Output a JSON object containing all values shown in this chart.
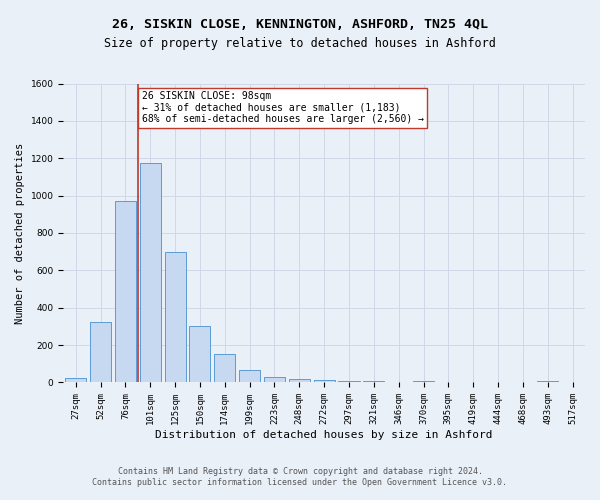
{
  "title": "26, SISKIN CLOSE, KENNINGTON, ASHFORD, TN25 4QL",
  "subtitle": "Size of property relative to detached houses in Ashford",
  "xlabel": "Distribution of detached houses by size in Ashford",
  "ylabel": "Number of detached properties",
  "footnote1": "Contains HM Land Registry data © Crown copyright and database right 2024.",
  "footnote2": "Contains public sector information licensed under the Open Government Licence v3.0.",
  "bar_labels": [
    "27sqm",
    "52sqm",
    "76sqm",
    "101sqm",
    "125sqm",
    "150sqm",
    "174sqm",
    "199sqm",
    "223sqm",
    "248sqm",
    "272sqm",
    "297sqm",
    "321sqm",
    "346sqm",
    "370sqm",
    "395sqm",
    "419sqm",
    "444sqm",
    "468sqm",
    "493sqm",
    "517sqm"
  ],
  "bar_values": [
    25,
    325,
    970,
    1175,
    700,
    300,
    155,
    65,
    30,
    20,
    15,
    10,
    10,
    0,
    10,
    0,
    0,
    0,
    0,
    10,
    0
  ],
  "bar_color": "#c6d9f1",
  "bar_edge_color": "#5b9bd5",
  "vline_color": "#c0392b",
  "annotation_text": "26 SISKIN CLOSE: 98sqm\n← 31% of detached houses are smaller (1,183)\n68% of semi-detached houses are larger (2,560) →",
  "annotation_box_color": "#ffffff",
  "annotation_box_edge": "#c0392b",
  "ylim": [
    0,
    1600
  ],
  "yticks": [
    0,
    200,
    400,
    600,
    800,
    1000,
    1200,
    1400,
    1600
  ],
  "grid_color": "#d0d8e8",
  "bg_color": "#eaf0f8",
  "title_fontsize": 9.5,
  "subtitle_fontsize": 8.5,
  "xlabel_fontsize": 8,
  "ylabel_fontsize": 7.5,
  "tick_fontsize": 6.5,
  "annot_fontsize": 7,
  "footnote_fontsize": 6
}
